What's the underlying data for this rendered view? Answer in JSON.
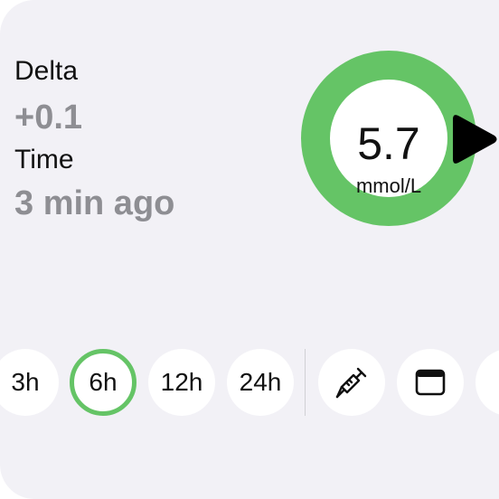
{
  "delta": {
    "label": "Delta",
    "value": "+0.1"
  },
  "time": {
    "label": "Time",
    "value": "3 min ago"
  },
  "glucose": {
    "value": "5.7",
    "unit": "mmol/L",
    "ring_color": "#65c466",
    "trend_icon": "trend-arrow-right-icon"
  },
  "range_buttons": [
    {
      "label": "3h",
      "selected": false
    },
    {
      "label": "6h",
      "selected": true
    },
    {
      "label": "12h",
      "selected": false
    },
    {
      "label": "24h",
      "selected": false
    }
  ],
  "action_buttons": [
    {
      "icon": "syringe-icon"
    },
    {
      "icon": "window-icon"
    },
    {
      "icon": "partial-icon"
    }
  ],
  "colors": {
    "accent_green": "#65c466",
    "card_background": "#f2f1f6",
    "secondary_text": "#8e8e93"
  }
}
